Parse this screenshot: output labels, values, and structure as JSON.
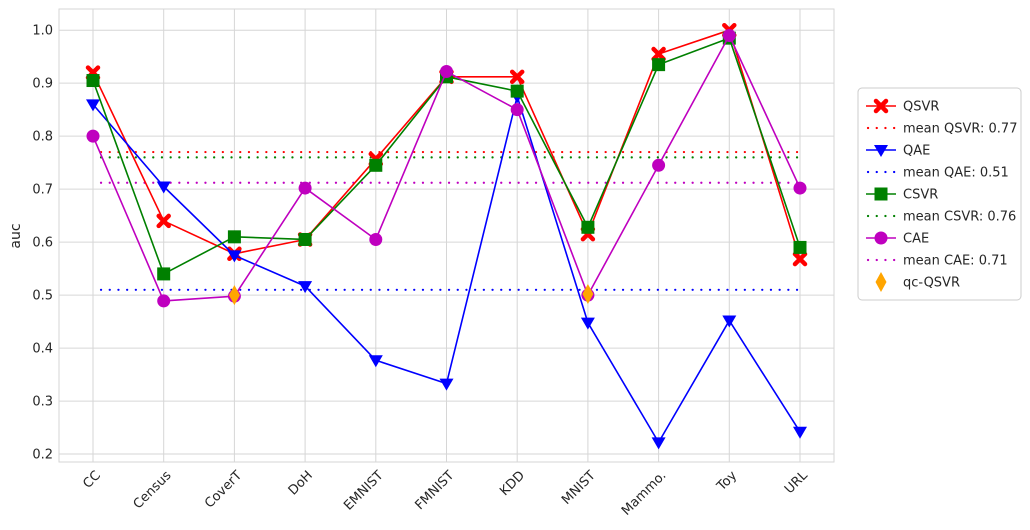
{
  "chart_data": {
    "type": "line",
    "ylabel": "auc",
    "ylim": [
      0.185,
      1.04
    ],
    "yticks": [
      "0.2",
      "0.3",
      "0.4",
      "0.5",
      "0.6",
      "0.7",
      "0.8",
      "0.9",
      "1.0"
    ],
    "ytick_values": [
      0.2,
      0.3,
      0.4,
      0.5,
      0.6,
      0.7,
      0.8,
      0.9,
      1.0
    ],
    "categories": [
      "CC",
      "Census",
      "CoverT",
      "DoH",
      "EMNIST",
      "FMNIST",
      "KDD",
      "MNIST",
      "Mammo.",
      "Toy",
      "URL"
    ],
    "grid": true,
    "legend_position": "right",
    "series": [
      {
        "name": "QSVR",
        "color": "#ff0000",
        "marker": "x",
        "values": [
          0.92,
          0.64,
          0.578,
          0.605,
          0.757,
          0.912,
          0.912,
          0.615,
          0.955,
          1.0,
          0.568
        ]
      },
      {
        "name": "QAE",
        "color": "#0000ff",
        "marker": "v",
        "values": [
          0.86,
          0.705,
          0.575,
          0.517,
          0.377,
          0.333,
          0.875,
          0.448,
          0.222,
          0.452,
          0.242
        ]
      },
      {
        "name": "CSVR",
        "color": "#008000",
        "marker": "s",
        "values": [
          0.905,
          0.54,
          0.61,
          0.605,
          0.745,
          0.912,
          0.885,
          0.628,
          0.935,
          0.985,
          0.59
        ]
      },
      {
        "name": "CAE",
        "color": "#bf00bf",
        "marker": "o",
        "values": [
          0.8,
          0.489,
          0.498,
          0.702,
          0.605,
          0.922,
          0.85,
          0.5,
          0.745,
          0.99,
          0.702
        ]
      }
    ],
    "means": [
      {
        "name": "mean QSVR: 0.77",
        "color": "#ff0000",
        "value": 0.77
      },
      {
        "name": "mean QAE: 0.51",
        "color": "#0000ff",
        "value": 0.51
      },
      {
        "name": "mean CSVR: 0.76",
        "color": "#008000",
        "value": 0.76
      },
      {
        "name": "mean CAE: 0.71",
        "color": "#bf00bf",
        "value": 0.712
      }
    ],
    "qc": {
      "name": "qc-QSVR",
      "color": "#ffa500",
      "points": [
        {
          "category": "CoverT",
          "value": 0.5
        },
        {
          "category": "MNIST",
          "value": 0.502
        }
      ]
    },
    "legend": [
      {
        "label": "QSVR",
        "kind": "line",
        "color": "#ff0000",
        "marker": "x"
      },
      {
        "label": "mean QSVR: 0.77",
        "kind": "dots",
        "color": "#ff0000"
      },
      {
        "label": "QAE",
        "kind": "line",
        "color": "#0000ff",
        "marker": "v"
      },
      {
        "label": "mean QAE: 0.51",
        "kind": "dots",
        "color": "#0000ff"
      },
      {
        "label": "CSVR",
        "kind": "line",
        "color": "#008000",
        "marker": "s"
      },
      {
        "label": "mean CSVR: 0.76",
        "kind": "dots",
        "color": "#008000"
      },
      {
        "label": "CAE",
        "kind": "line",
        "color": "#bf00bf",
        "marker": "o"
      },
      {
        "label": "mean CAE: 0.71",
        "kind": "dots",
        "color": "#bf00bf"
      },
      {
        "label": "qc-QSVR",
        "kind": "marker",
        "color": "#ffa500",
        "marker": "d"
      }
    ]
  }
}
